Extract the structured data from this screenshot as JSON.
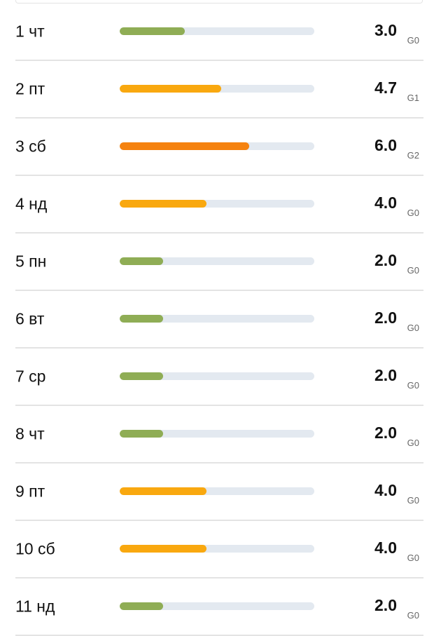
{
  "scale": {
    "max": 9
  },
  "colors": {
    "G0": "#8fad55",
    "G1": "#f9a80f",
    "G2": "#f5820f",
    "track": "#e3e9f0"
  },
  "days": [
    {
      "label": "1 чт",
      "value": "3.0",
      "kp": 3.0,
      "g": "G0",
      "color": "#8fad55"
    },
    {
      "label": "2 пт",
      "value": "4.7",
      "kp": 4.7,
      "g": "G1",
      "color": "#f9a80f"
    },
    {
      "label": "3 сб",
      "value": "6.0",
      "kp": 6.0,
      "g": "G2",
      "color": "#f5820f"
    },
    {
      "label": "4 нд",
      "value": "4.0",
      "kp": 4.0,
      "g": "G0",
      "color": "#f9a80f"
    },
    {
      "label": "5 пн",
      "value": "2.0",
      "kp": 2.0,
      "g": "G0",
      "color": "#8fad55"
    },
    {
      "label": "6 вт",
      "value": "2.0",
      "kp": 2.0,
      "g": "G0",
      "color": "#8fad55"
    },
    {
      "label": "7 ср",
      "value": "2.0",
      "kp": 2.0,
      "g": "G0",
      "color": "#8fad55"
    },
    {
      "label": "8 чт",
      "value": "2.0",
      "kp": 2.0,
      "g": "G0",
      "color": "#8fad55"
    },
    {
      "label": "9 пт",
      "value": "4.0",
      "kp": 4.0,
      "g": "G0",
      "color": "#f9a80f"
    },
    {
      "label": "10 сб",
      "value": "4.0",
      "kp": 4.0,
      "g": "G0",
      "color": "#f9a80f"
    },
    {
      "label": "11 нд",
      "value": "2.0",
      "kp": 2.0,
      "g": "G0",
      "color": "#8fad55"
    }
  ]
}
